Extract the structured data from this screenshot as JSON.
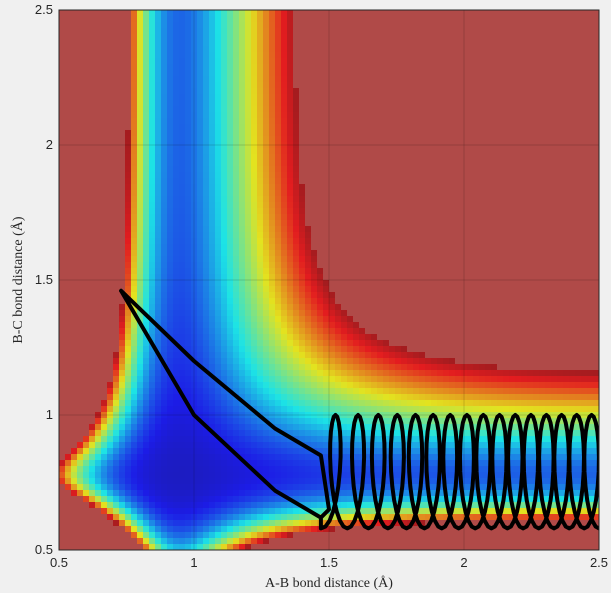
{
  "chart_data": {
    "type": "contour",
    "title": "",
    "xlabel": "A-B bond distance (Å)",
    "ylabel": "B-C bond distance (Å)",
    "xlim": [
      0.5,
      2.5
    ],
    "ylim": [
      0.5,
      2.5
    ],
    "xticks": [
      0.5,
      1,
      1.5,
      2,
      2.5
    ],
    "yticks": [
      0.5,
      1,
      1.5,
      2,
      2.5
    ],
    "xtick_labels": [
      "0.5",
      "1",
      "1.5",
      "2",
      "2.5"
    ],
    "ytick_labels": [
      "0.5",
      "1",
      "1.5",
      "2",
      "2.5"
    ],
    "grid": true,
    "colormap": "jet",
    "plateau_color": "#b04a48",
    "trajectory_color": "#000000",
    "surface": {
      "description": "potential energy surface contour (LEPS-type), filled",
      "valley_minimum_bc": {
        "x": 0.95,
        "y": 2.5
      },
      "valley_minimum_ab": {
        "x": 2.5,
        "y": 0.78
      }
    },
    "trajectory": {
      "name": "",
      "start": {
        "x": 0.73,
        "y": 1.46
      },
      "x": [
        0.73,
        1.0,
        1.3,
        1.47,
        1.5,
        1.47,
        1.3,
        1.0,
        0.73
      ],
      "y": [
        1.46,
        1.2,
        0.95,
        0.85,
        0.65,
        0.62,
        0.72,
        1.0,
        1.46
      ],
      "outgoing_oscillation": {
        "x_range": [
          1.47,
          2.5
        ],
        "y_range": [
          0.58,
          1.0
        ],
        "periods": 16
      }
    }
  }
}
